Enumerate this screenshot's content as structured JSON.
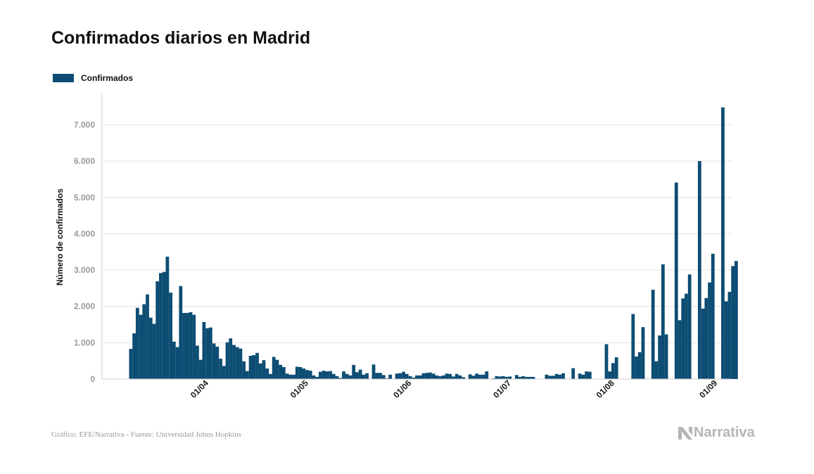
{
  "header": {
    "title": "Confirmados diarios en Madrid"
  },
  "footer": {
    "source": "Gráfico: EFE/Narrativa - Fuente: Universidad Johns Hopkins",
    "brand": "Narrativa"
  },
  "colors": {
    "bar": "#0d4d73",
    "grid": "#e3e3e3",
    "axis": "#cccccc",
    "brand": "#b5b5b5"
  },
  "chart_data": {
    "type": "bar",
    "title": "Confirmados diarios en Madrid",
    "ylabel": "Número de confirmados",
    "xlabel": "",
    "ylim": [
      0,
      7800
    ],
    "yticks": [
      {
        "value": 0,
        "label": "0"
      },
      {
        "value": 1000,
        "label": "1.000"
      },
      {
        "value": 2000,
        "label": "2.000"
      },
      {
        "value": 3000,
        "label": "3.000"
      },
      {
        "value": 4000,
        "label": "4.000"
      },
      {
        "value": 5000,
        "label": "5.000"
      },
      {
        "value": 6000,
        "label": "6.000"
      },
      {
        "value": 7000,
        "label": "7.000"
      }
    ],
    "xticks": [
      {
        "date": "2020-04-01",
        "label": "01/04"
      },
      {
        "date": "2020-05-01",
        "label": "01/05"
      },
      {
        "date": "2020-06-01",
        "label": "01/06"
      },
      {
        "date": "2020-07-01",
        "label": "01/07"
      },
      {
        "date": "2020-08-01",
        "label": "01/08"
      },
      {
        "date": "2020-09-01",
        "label": "01/09"
      }
    ],
    "grid": true,
    "legend": {
      "position": "top-left"
    },
    "series": [
      {
        "name": "Confirmados",
        "start_date": "2020-03-09",
        "values": [
          830,
          1260,
          1960,
          1770,
          2060,
          2330,
          1690,
          1520,
          2690,
          2920,
          2950,
          3370,
          2380,
          1030,
          880,
          2560,
          1820,
          1820,
          1840,
          1770,
          920,
          530,
          1570,
          1400,
          1420,
          980,
          890,
          560,
          360,
          1010,
          1120,
          940,
          880,
          840,
          490,
          220,
          640,
          660,
          720,
          430,
          520,
          290,
          140,
          610,
          530,
          390,
          330,
          150,
          120,
          120,
          340,
          330,
          290,
          250,
          230,
          100,
          60,
          200,
          230,
          210,
          220,
          140,
          80,
          30,
          210,
          140,
          100,
          390,
          190,
          260,
          120,
          160,
          10,
          400,
          170,
          170,
          110,
          20,
          120,
          10,
          150,
          160,
          200,
          140,
          80,
          40,
          100,
          100,
          160,
          170,
          180,
          150,
          100,
          80,
          100,
          150,
          140,
          70,
          140,
          100,
          50,
          0,
          130,
          90,
          150,
          120,
          120,
          210,
          0,
          20,
          80,
          70,
          80,
          60,
          70,
          10,
          110,
          60,
          80,
          60,
          60,
          60,
          0,
          0,
          0,
          120,
          90,
          90,
          140,
          120,
          160,
          0,
          0,
          300,
          0,
          150,
          120,
          210,
          200,
          0,
          0,
          0,
          0,
          960,
          210,
          440,
          600,
          0,
          0,
          0,
          0,
          1790,
          620,
          740,
          1430,
          0,
          0,
          2460,
          490,
          1200,
          3160,
          1230,
          0,
          0,
          5410,
          1620,
          2220,
          2350,
          2880,
          0,
          0,
          6000,
          1940,
          2230,
          2660,
          3450,
          0,
          0,
          7480,
          2140,
          2400,
          3110,
          3250
        ]
      }
    ]
  }
}
